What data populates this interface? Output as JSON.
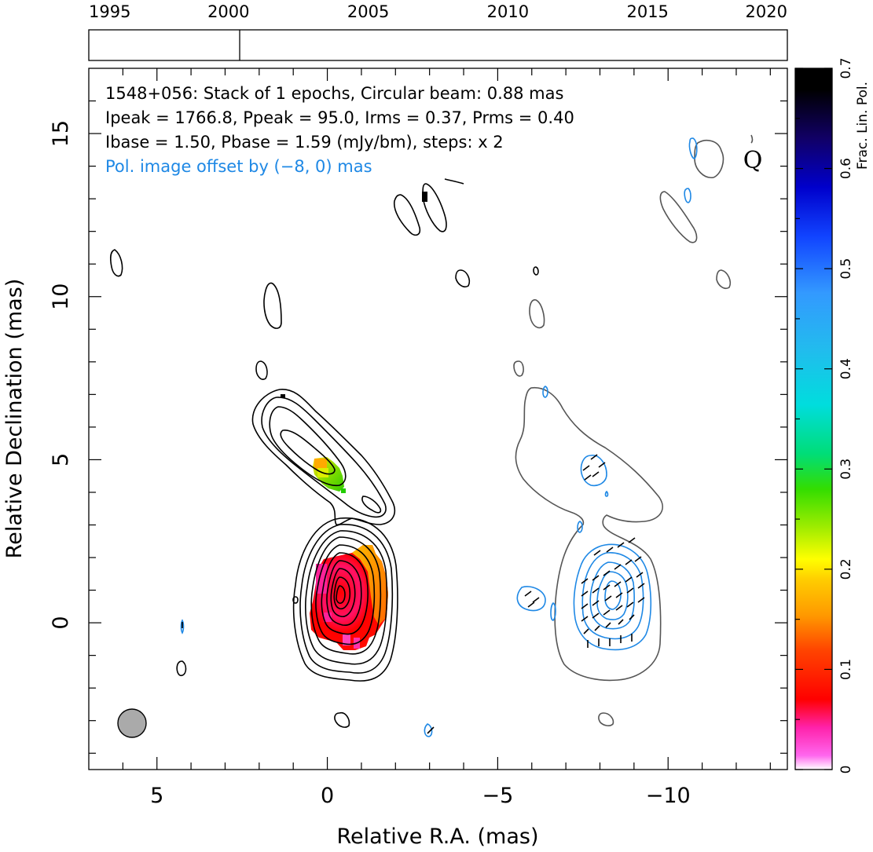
{
  "chart_data": {
    "type": "contour",
    "timeline": {
      "years": [
        "1995",
        "2000",
        "2005",
        "2010",
        "2015",
        "2020"
      ],
      "range": [
        1995,
        2020
      ],
      "epochs": [
        2000.4
      ]
    },
    "xlabel": "Relative R.A. (mas)",
    "ylabel": "Relative Declination (mas)",
    "xlim": [
      7,
      -13.5
    ],
    "ylim": [
      -4.5,
      17
    ],
    "x_ticks": [
      "5",
      "0",
      "−5",
      "−10"
    ],
    "y_ticks": [
      "0",
      "5",
      "10",
      "15"
    ],
    "annotations": {
      "line1": "1548+056: Stack of 1 epochs, Circular beam: 0.88 mas",
      "line2": "Ipeak = 1766.8, Ppeak = 95.0, Irms = 0.37, Prms = 0.40",
      "line3": "Ibase = 1.50, Pbase = 1.59 (mJy/bm), steps: x 2",
      "line4": "Pol. image offset by (−8, 0) mas",
      "quality_flag": "Q"
    },
    "colorbar": {
      "label": "Frac. Lin. Pol.",
      "range": [
        0,
        0.7
      ],
      "ticks": [
        "0",
        "0.1",
        "0.2",
        "0.3",
        "0.4",
        "0.5",
        "0.6",
        "0.7"
      ],
      "colors": [
        "#ff66ee",
        "#ff0000",
        "#ff9900",
        "#ffff00",
        "#33dd00",
        "#00cccc",
        "#3399ff",
        "#0000cc",
        "#000000"
      ]
    },
    "beam": {
      "x": 6.2,
      "y": -3.1,
      "diameter_mas": 0.88
    },
    "colors": {
      "stokes_i": "#000000",
      "offset_i": "#555555",
      "polarization": "#1e88e5",
      "beam": "#aaaaaa"
    }
  }
}
